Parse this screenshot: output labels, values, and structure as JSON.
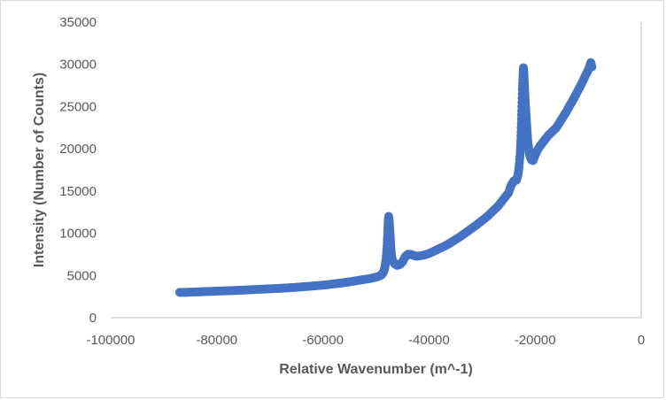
{
  "chart_data": {
    "type": "scatter",
    "title": "",
    "xlabel": "Relative Wavenumber (m^-1)",
    "ylabel": "Intensity (Number of Counts)",
    "xlim": [
      -100000,
      0
    ],
    "ylim": [
      0,
      35000
    ],
    "xticks": [
      -100000,
      -80000,
      -60000,
      -40000,
      -20000,
      0
    ],
    "yticks": [
      0,
      5000,
      10000,
      15000,
      20000,
      25000,
      30000,
      35000
    ],
    "grid": false,
    "marker_color": "#4472c4",
    "points": [
      [
        -87000,
        3000
      ],
      [
        -86000,
        3000
      ],
      [
        -85000,
        3020
      ],
      [
        -84000,
        3050
      ],
      [
        -83000,
        3070
      ],
      [
        -82000,
        3100
      ],
      [
        -81000,
        3120
      ],
      [
        -80000,
        3150
      ],
      [
        -79000,
        3170
      ],
      [
        -78000,
        3190
      ],
      [
        -77000,
        3210
      ],
      [
        -76000,
        3240
      ],
      [
        -75000,
        3270
      ],
      [
        -74000,
        3300
      ],
      [
        -73000,
        3330
      ],
      [
        -72000,
        3360
      ],
      [
        -71000,
        3390
      ],
      [
        -70000,
        3420
      ],
      [
        -69000,
        3450
      ],
      [
        -68000,
        3480
      ],
      [
        -67000,
        3520
      ],
      [
        -66000,
        3560
      ],
      [
        -65000,
        3600
      ],
      [
        -64000,
        3650
      ],
      [
        -63000,
        3700
      ],
      [
        -62000,
        3750
      ],
      [
        -61000,
        3800
      ],
      [
        -60000,
        3850
      ],
      [
        -59000,
        3920
      ],
      [
        -58000,
        4000
      ],
      [
        -57000,
        4070
      ],
      [
        -56000,
        4150
      ],
      [
        -55000,
        4250
      ],
      [
        -54000,
        4350
      ],
      [
        -53000,
        4450
      ],
      [
        -52000,
        4550
      ],
      [
        -51000,
        4650
      ],
      [
        -50000,
        4800
      ],
      [
        -49500,
        4900
      ],
      [
        -49000,
        5050
      ],
      [
        -48800,
        5200
      ],
      [
        -48500,
        5500
      ],
      [
        -48300,
        6000
      ],
      [
        -48100,
        7000
      ],
      [
        -47900,
        8500
      ],
      [
        -47800,
        10000
      ],
      [
        -47700,
        11200
      ],
      [
        -47600,
        12000
      ],
      [
        -47500,
        11500
      ],
      [
        -47400,
        10500
      ],
      [
        -47300,
        9500
      ],
      [
        -47200,
        8500
      ],
      [
        -47100,
        7600
      ],
      [
        -47000,
        7000
      ],
      [
        -46800,
        6700
      ],
      [
        -46500,
        6400
      ],
      [
        -46000,
        6200
      ],
      [
        -45500,
        6300
      ],
      [
        -45000,
        6600
      ],
      [
        -44500,
        7200
      ],
      [
        -44000,
        7500
      ],
      [
        -43500,
        7500
      ],
      [
        -43000,
        7400
      ],
      [
        -42500,
        7300
      ],
      [
        -42000,
        7300
      ],
      [
        -41000,
        7400
      ],
      [
        -40000,
        7600
      ],
      [
        -39000,
        7900
      ],
      [
        -38000,
        8200
      ],
      [
        -37000,
        8500
      ],
      [
        -36000,
        8850
      ],
      [
        -35000,
        9250
      ],
      [
        -34000,
        9650
      ],
      [
        -33000,
        10100
      ],
      [
        -32000,
        10550
      ],
      [
        -31000,
        11000
      ],
      [
        -30000,
        11500
      ],
      [
        -29000,
        12000
      ],
      [
        -28000,
        12600
      ],
      [
        -27000,
        13200
      ],
      [
        -26000,
        14000
      ],
      [
        -25000,
        14800
      ],
      [
        -24500,
        15700
      ],
      [
        -24000,
        16200
      ],
      [
        -23500,
        16300
      ],
      [
        -23200,
        17000
      ],
      [
        -23000,
        18000
      ],
      [
        -22800,
        19500
      ],
      [
        -22700,
        21000
      ],
      [
        -22600,
        23000
      ],
      [
        -22500,
        25000
      ],
      [
        -22400,
        27000
      ],
      [
        -22300,
        28500
      ],
      [
        -22200,
        29600
      ],
      [
        -22100,
        28800
      ],
      [
        -22000,
        27500
      ],
      [
        -21900,
        26200
      ],
      [
        -21800,
        25000
      ],
      [
        -21700,
        24000
      ],
      [
        -21600,
        23000
      ],
      [
        -21500,
        22000
      ],
      [
        -21400,
        21000
      ],
      [
        -21200,
        20000
      ],
      [
        -21000,
        19200
      ],
      [
        -20700,
        18700
      ],
      [
        -20400,
        18600
      ],
      [
        -20000,
        19200
      ],
      [
        -19500,
        19900
      ],
      [
        -19000,
        20400
      ],
      [
        -18500,
        20800
      ],
      [
        -18000,
        21200
      ],
      [
        -17500,
        21600
      ],
      [
        -17000,
        21900
      ],
      [
        -16500,
        22200
      ],
      [
        -16000,
        22500
      ],
      [
        -15500,
        23000
      ],
      [
        -15000,
        23500
      ],
      [
        -14500,
        24000
      ],
      [
        -14000,
        24500
      ],
      [
        -13500,
        25100
      ],
      [
        -13000,
        25600
      ],
      [
        -12500,
        26200
      ],
      [
        -12000,
        26800
      ],
      [
        -11500,
        27400
      ],
      [
        -11000,
        28000
      ],
      [
        -10500,
        28700
      ],
      [
        -10000,
        29300
      ],
      [
        -9700,
        29800
      ],
      [
        -9500,
        30200
      ],
      [
        -9300,
        29700
      ]
    ]
  }
}
